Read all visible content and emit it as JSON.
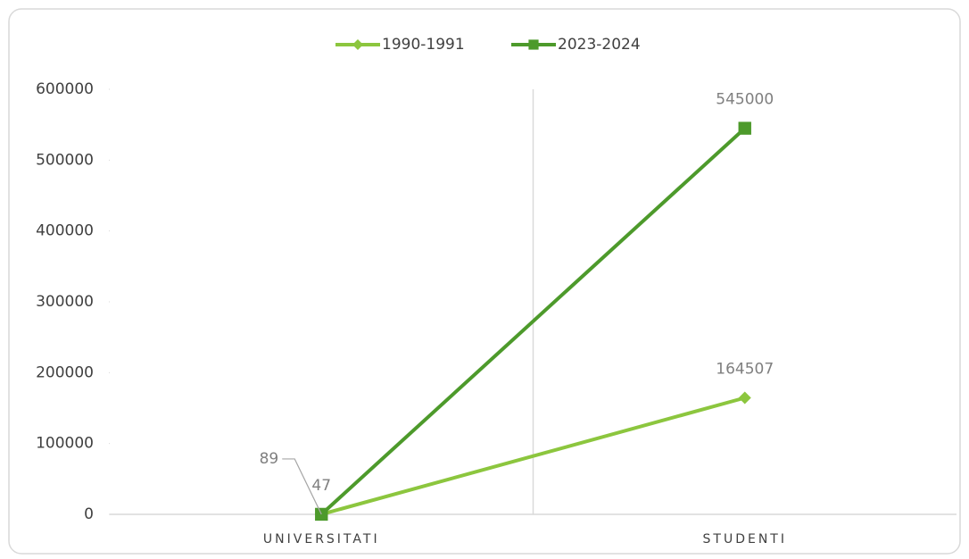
{
  "chart_data": {
    "type": "line",
    "categories": [
      "UNIVERSITATI",
      "STUDENTI"
    ],
    "series": [
      {
        "name": "1990-1991",
        "color": "#8cc63e",
        "marker": "diamond",
        "values": [
          47,
          164507
        ]
      },
      {
        "name": "2023-2024",
        "color": "#4d9a2b",
        "marker": "square",
        "values": [
          89,
          545000
        ]
      }
    ],
    "ylim": [
      0,
      600000
    ],
    "yticks": [
      0,
      100000,
      200000,
      300000,
      400000,
      500000,
      600000
    ],
    "grid": true,
    "legend": "top",
    "data_labels": true
  }
}
